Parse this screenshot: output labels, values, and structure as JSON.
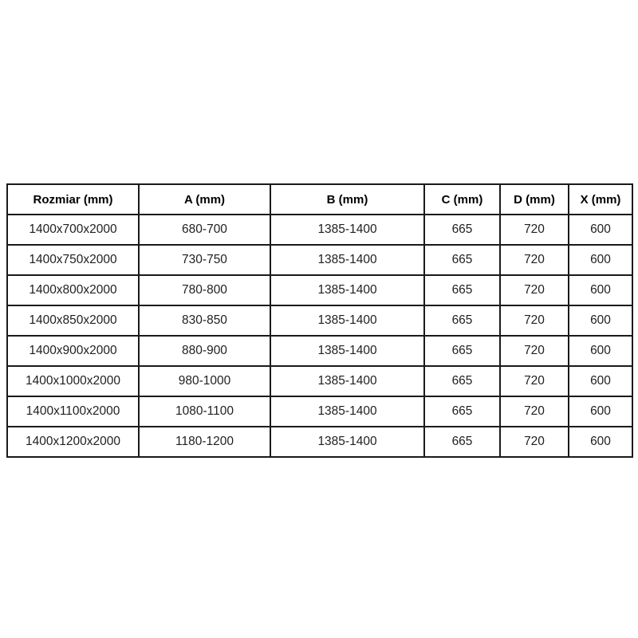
{
  "table": {
    "columns": [
      "Rozmiar (mm)",
      "A (mm)",
      "B (mm)",
      "C (mm)",
      "D (mm)",
      "X (mm)"
    ],
    "rows": [
      [
        "1400x700x2000",
        "680-700",
        "1385-1400",
        "665",
        "720",
        "600"
      ],
      [
        "1400x750x2000",
        "730-750",
        "1385-1400",
        "665",
        "720",
        "600"
      ],
      [
        "1400x800x2000",
        "780-800",
        "1385-1400",
        "665",
        "720",
        "600"
      ],
      [
        "1400x850x2000",
        "830-850",
        "1385-1400",
        "665",
        "720",
        "600"
      ],
      [
        "1400x900x2000",
        "880-900",
        "1385-1400",
        "665",
        "720",
        "600"
      ],
      [
        "1400x1000x2000",
        "980-1000",
        "1385-1400",
        "665",
        "720",
        "600"
      ],
      [
        "1400x1100x2000",
        "1080-1100",
        "1385-1400",
        "665",
        "720",
        "600"
      ],
      [
        "1400x1200x2000",
        "1180-1200",
        "1385-1400",
        "665",
        "720",
        "600"
      ]
    ]
  },
  "colors": {
    "background": "#ffffff",
    "border": "#1a1a1a",
    "header_text": "#000000",
    "body_text": "#1f1f1f"
  }
}
